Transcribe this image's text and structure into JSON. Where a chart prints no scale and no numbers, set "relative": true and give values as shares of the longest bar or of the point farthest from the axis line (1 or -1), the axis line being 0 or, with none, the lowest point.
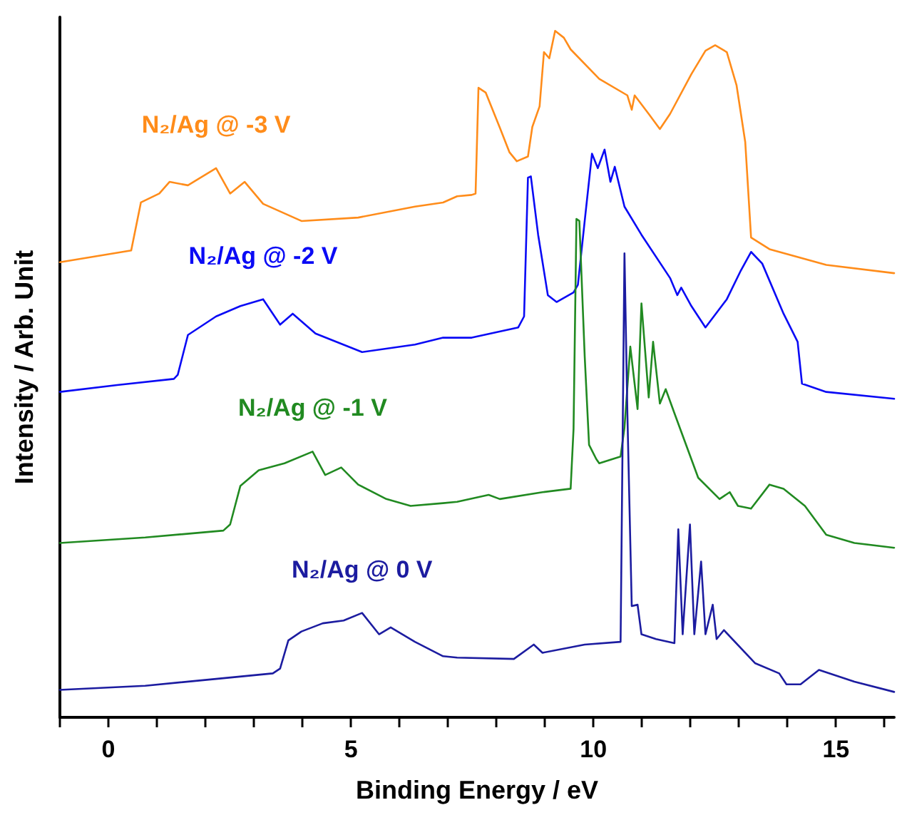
{
  "chart_data": {
    "type": "line",
    "relative": true,
    "xlabel": "Binding Energy / eV",
    "ylabel": "Intensity / Arb. Unit",
    "xlim": [
      -1,
      16.2
    ],
    "xticks": [
      {
        "value": -1,
        "label": null
      },
      0,
      {
        "value": 1,
        "label": null
      },
      {
        "value": 2,
        "label": null
      },
      {
        "value": 3,
        "label": null
      },
      {
        "value": 4,
        "label": null
      },
      5,
      {
        "value": 6,
        "label": null
      },
      {
        "value": 7,
        "label": null
      },
      {
        "value": 8,
        "label": null
      },
      {
        "value": 9,
        "label": null
      },
      10,
      {
        "value": 11,
        "label": null
      },
      {
        "value": 12,
        "label": null
      },
      {
        "value": 13,
        "label": null
      },
      {
        "value": 14,
        "label": null
      },
      15,
      {
        "value": 16,
        "label": null
      }
    ],
    "grid": false,
    "legend": false,
    "marker": "none",
    "line_style": "solid",
    "series": [
      {
        "name": "N₂/Ag @ -3 V",
        "color": "#ff8c1a",
        "x": [
          -1.0,
          0.47,
          0.67,
          1.05,
          1.26,
          1.64,
          2.22,
          2.51,
          2.81,
          3.19,
          3.98,
          5.15,
          6.32,
          6.9,
          7.19,
          7.49,
          7.57,
          7.63,
          7.78,
          8.07,
          8.27,
          8.42,
          8.65,
          8.74,
          8.89,
          8.98,
          9.09,
          9.21,
          9.39,
          9.53,
          10.12,
          10.7,
          10.79,
          10.85,
          11.14,
          11.37,
          11.58,
          12.02,
          12.31,
          12.51,
          12.75,
          12.95,
          13.13,
          13.25,
          13.63,
          14.8,
          16.2
        ],
        "values": [
          0.663,
          0.68,
          0.75,
          0.763,
          0.78,
          0.775,
          0.8,
          0.763,
          0.78,
          0.748,
          0.723,
          0.728,
          0.744,
          0.75,
          0.759,
          0.761,
          0.763,
          0.917,
          0.91,
          0.859,
          0.823,
          0.81,
          0.817,
          0.86,
          0.89,
          0.969,
          0.96,
          1.0,
          0.99,
          0.973,
          0.93,
          0.906,
          0.885,
          0.906,
          0.879,
          0.857,
          0.879,
          0.937,
          0.971,
          0.979,
          0.969,
          0.921,
          0.838,
          0.699,
          0.682,
          0.659,
          0.647
        ]
      },
      {
        "name": "N₂/Ag @ -2 V",
        "color": "#0a0af5",
        "x": [
          -1.0,
          0.18,
          1.35,
          1.43,
          1.64,
          2.22,
          2.72,
          3.19,
          3.54,
          3.8,
          4.27,
          5.23,
          6.32,
          6.9,
          7.49,
          8.45,
          8.57,
          8.65,
          8.71,
          8.86,
          9.06,
          9.24,
          9.59,
          9.68,
          9.82,
          9.97,
          10.09,
          10.23,
          10.35,
          10.44,
          10.64,
          10.99,
          11.58,
          11.73,
          11.81,
          12.02,
          12.31,
          12.75,
          13.04,
          13.25,
          13.48,
          13.92,
          14.21,
          14.3,
          14.8,
          16.2
        ],
        "values": [
          0.474,
          0.484,
          0.493,
          0.499,
          0.557,
          0.584,
          0.599,
          0.609,
          0.572,
          0.588,
          0.559,
          0.532,
          0.543,
          0.553,
          0.553,
          0.568,
          0.584,
          0.786,
          0.788,
          0.703,
          0.615,
          0.605,
          0.619,
          0.63,
          0.723,
          0.821,
          0.8,
          0.827,
          0.78,
          0.802,
          0.744,
          0.703,
          0.64,
          0.615,
          0.626,
          0.599,
          0.568,
          0.609,
          0.651,
          0.678,
          0.661,
          0.588,
          0.547,
          0.486,
          0.474,
          0.464
        ]
      },
      {
        "name": "N₂/Ag @ -1 V",
        "color": "#218a21",
        "x": [
          -1.0,
          0.76,
          2.37,
          2.51,
          2.72,
          3.1,
          3.63,
          4.21,
          4.47,
          4.8,
          5.15,
          5.73,
          6.23,
          6.9,
          7.19,
          7.84,
          8.07,
          8.95,
          9.53,
          9.59,
          9.65,
          9.71,
          9.82,
          9.91,
          10.06,
          10.12,
          10.56,
          10.64,
          10.76,
          10.91,
          10.99,
          11.14,
          11.23,
          11.37,
          11.49,
          11.67,
          12.16,
          12.6,
          12.81,
          12.98,
          13.25,
          13.63,
          13.92,
          14.36,
          14.8,
          15.38,
          16.2
        ],
        "values": [
          0.254,
          0.262,
          0.272,
          0.281,
          0.337,
          0.36,
          0.37,
          0.387,
          0.353,
          0.364,
          0.339,
          0.318,
          0.308,
          0.312,
          0.314,
          0.324,
          0.318,
          0.328,
          0.333,
          0.42,
          0.726,
          0.723,
          0.526,
          0.397,
          0.376,
          0.37,
          0.38,
          0.422,
          0.54,
          0.449,
          0.603,
          0.466,
          0.547,
          0.457,
          0.478,
          0.443,
          0.349,
          0.318,
          0.328,
          0.308,
          0.304,
          0.339,
          0.333,
          0.308,
          0.266,
          0.254,
          0.247
        ]
      },
      {
        "name": "N₂/Ag @ 0 V",
        "color": "#1c1ca0",
        "x": [
          -1.0,
          0.76,
          2.22,
          3.39,
          3.54,
          3.71,
          3.98,
          4.42,
          4.85,
          5.23,
          5.58,
          5.82,
          6.32,
          6.9,
          7.19,
          8.36,
          8.77,
          8.95,
          9.82,
          10.56,
          10.64,
          10.7,
          10.79,
          10.91,
          10.99,
          11.29,
          11.67,
          11.75,
          11.84,
          11.99,
          12.08,
          12.22,
          12.31,
          12.46,
          12.54,
          12.69,
          13.33,
          13.83,
          13.98,
          14.27,
          14.65,
          15.38,
          16.2
        ],
        "values": [
          0.04,
          0.046,
          0.056,
          0.064,
          0.071,
          0.112,
          0.125,
          0.137,
          0.141,
          0.152,
          0.121,
          0.131,
          0.11,
          0.089,
          0.087,
          0.085,
          0.106,
          0.094,
          0.106,
          0.11,
          0.676,
          0.443,
          0.162,
          0.164,
          0.121,
          0.114,
          0.108,
          0.274,
          0.121,
          0.281,
          0.121,
          0.227,
          0.121,
          0.164,
          0.114,
          0.127,
          0.079,
          0.064,
          0.048,
          0.048,
          0.069,
          0.052,
          0.037
        ]
      }
    ]
  }
}
